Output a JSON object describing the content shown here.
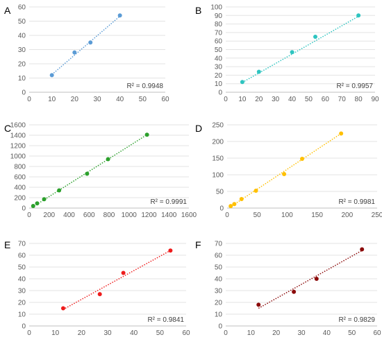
{
  "chart_data": [
    {
      "type": "scatter",
      "panel": "A",
      "color": "#5b9bd5",
      "xlim": [
        0,
        60
      ],
      "xticks": [
        0,
        10,
        20,
        30,
        40,
        50,
        60
      ],
      "ylim": [
        0,
        60
      ],
      "yticks": [
        0,
        10,
        20,
        30,
        40,
        50,
        60
      ],
      "points": [
        [
          10,
          12
        ],
        [
          20,
          28
        ],
        [
          27,
          35
        ],
        [
          40,
          54
        ]
      ],
      "trendline": [
        [
          10,
          12.4
        ],
        [
          40,
          53.5
        ]
      ],
      "r2_label": "R² = 0.9948"
    },
    {
      "type": "scatter",
      "panel": "B",
      "color": "#2ec4c0",
      "xlim": [
        0,
        90
      ],
      "xticks": [
        0,
        10,
        20,
        30,
        40,
        50,
        60,
        70,
        80,
        90
      ],
      "ylim": [
        0,
        100
      ],
      "yticks": [
        0,
        10,
        20,
        30,
        40,
        50,
        60,
        70,
        80,
        90,
        100
      ],
      "points": [
        [
          10,
          12
        ],
        [
          20,
          24
        ],
        [
          40,
          47
        ],
        [
          54,
          65
        ],
        [
          80,
          90
        ]
      ],
      "trendline": [
        [
          10,
          11.5
        ],
        [
          80,
          89
        ]
      ],
      "r2_label": "R² = 0.9957"
    },
    {
      "type": "scatter",
      "panel": "C",
      "color": "#2ca02c",
      "xlim": [
        0,
        1600
      ],
      "xticks": [
        0,
        200,
        400,
        600,
        800,
        1000,
        1200,
        1400,
        1600
      ],
      "ylim": [
        0,
        1600
      ],
      "yticks": [
        0,
        200,
        400,
        600,
        800,
        1000,
        1200,
        1400,
        1600
      ],
      "points": [
        [
          40,
          40
        ],
        [
          80,
          90
        ],
        [
          150,
          170
        ],
        [
          300,
          340
        ],
        [
          580,
          660
        ],
        [
          790,
          940
        ],
        [
          1180,
          1410
        ]
      ],
      "trendline": [
        [
          30,
          15
        ],
        [
          1180,
          1410
        ]
      ],
      "r2_label": "R² = 0.9991"
    },
    {
      "type": "scatter",
      "panel": "D",
      "color": "#ffc000",
      "xlim": [
        0,
        250
      ],
      "xticks": [
        0,
        50,
        100,
        150,
        200,
        250
      ],
      "ylim": [
        0,
        250
      ],
      "yticks": [
        0,
        50,
        100,
        150,
        200,
        250
      ],
      "points": [
        [
          6,
          6
        ],
        [
          12,
          12
        ],
        [
          24,
          27
        ],
        [
          48,
          52
        ],
        [
          95,
          102
        ],
        [
          125,
          148
        ],
        [
          190,
          224
        ]
      ],
      "trendline": [
        [
          6,
          4
        ],
        [
          190,
          224
        ]
      ],
      "r2_label": "R² = 0.9981"
    },
    {
      "type": "scatter",
      "panel": "E",
      "color": "#ee1c1c",
      "xlim": [
        0,
        60
      ],
      "xticks": [
        0,
        10,
        20,
        30,
        40,
        50,
        60
      ],
      "ylim": [
        0,
        70
      ],
      "yticks": [
        0,
        10,
        20,
        30,
        40,
        50,
        60,
        70
      ],
      "points": [
        [
          13,
          15
        ],
        [
          27,
          27
        ],
        [
          36,
          45
        ],
        [
          54,
          64
        ]
      ],
      "trendline": [
        [
          13,
          14
        ],
        [
          54,
          64
        ]
      ],
      "r2_label": "R² = 0.9841"
    },
    {
      "type": "scatter",
      "panel": "F",
      "color": "#8b0a0a",
      "xlim": [
        0,
        60
      ],
      "xticks": [
        0,
        10,
        20,
        30,
        40,
        50,
        60
      ],
      "ylim": [
        0,
        70
      ],
      "yticks": [
        0,
        10,
        20,
        30,
        40,
        50,
        60,
        70
      ],
      "points": [
        [
          13,
          18
        ],
        [
          27,
          29
        ],
        [
          36,
          40
        ],
        [
          54,
          65
        ]
      ],
      "trendline": [
        [
          13,
          15
        ],
        [
          54,
          64
        ]
      ],
      "r2_label": "R² = 0.9829"
    }
  ]
}
